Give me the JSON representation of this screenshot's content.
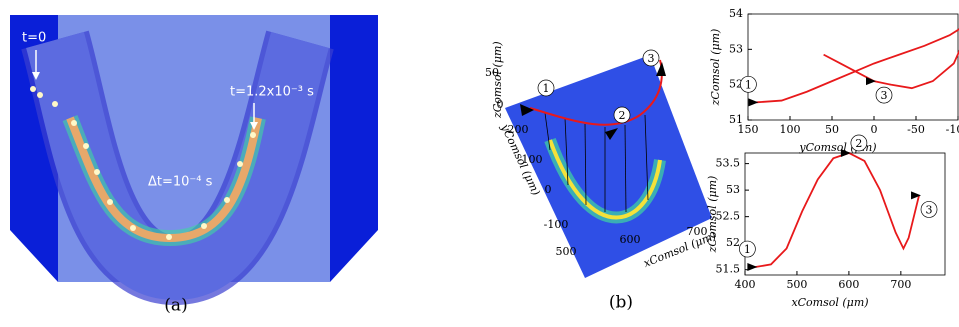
{
  "panel_a": {
    "label_t0": "t=0",
    "label_t_end": "t=1.2x10⁻³ s",
    "label_dt": "Δt=10⁻⁴ s",
    "caption": "(a)"
  },
  "panel_b": {
    "caption": "(b)",
    "plot3d": {
      "zlabel": "zComsol (μm)",
      "ylabel": "yComsol (μm)",
      "xlabel": "xComsol (μm)",
      "zticks": [
        "50",
        "0"
      ],
      "yticks": [
        "200",
        "100",
        "0",
        "-100"
      ],
      "xticks": [
        "500",
        "600",
        "700"
      ],
      "markers": [
        "1",
        "2",
        "3"
      ]
    }
  },
  "chart_data": [
    {
      "type": "line",
      "xlabel": "yComsol (μm)",
      "ylabel": "zComsol (μm)",
      "xlim": [
        150,
        -100
      ],
      "xticks": [
        150,
        100,
        50,
        0,
        -50,
        -100
      ],
      "ylim": [
        51,
        54
      ],
      "yticks": [
        51,
        52,
        53,
        54
      ],
      "markers": [
        "1",
        "2",
        "3"
      ],
      "x": [
        140,
        110,
        80,
        50,
        20,
        0,
        -30,
        -60,
        -90,
        -110,
        -115,
        -110,
        -95,
        -70,
        -45,
        -20,
        0,
        20,
        40,
        60
      ],
      "series": [
        {
          "color": "#e8191b",
          "values": [
            51.5,
            51.55,
            51.8,
            52.1,
            52.4,
            52.6,
            52.85,
            53.1,
            53.4,
            53.7,
            53.75,
            53.4,
            52.6,
            52.1,
            51.9,
            52.0,
            52.1,
            52.35,
            52.6,
            52.85
          ]
        }
      ]
    },
    {
      "type": "line",
      "xlabel": "xComsol (μm)",
      "ylabel": "zComsol (μm)",
      "xlim": [
        400,
        785
      ],
      "xticks": [
        400,
        500,
        600,
        700
      ],
      "ylim": [
        51.4,
        53.7
      ],
      "yticks": [
        51.5,
        52,
        52.5,
        53,
        53.5
      ],
      "markers": [
        "1",
        "2",
        "3"
      ],
      "x": [
        420,
        450,
        480,
        510,
        540,
        570,
        600,
        630,
        660,
        690,
        705,
        715,
        725,
        735
      ],
      "series": [
        {
          "color": "#e8191b",
          "values": [
            51.55,
            51.6,
            51.9,
            52.6,
            53.2,
            53.6,
            53.7,
            53.55,
            53.0,
            52.2,
            51.9,
            52.1,
            52.5,
            52.9
          ]
        }
      ]
    }
  ]
}
